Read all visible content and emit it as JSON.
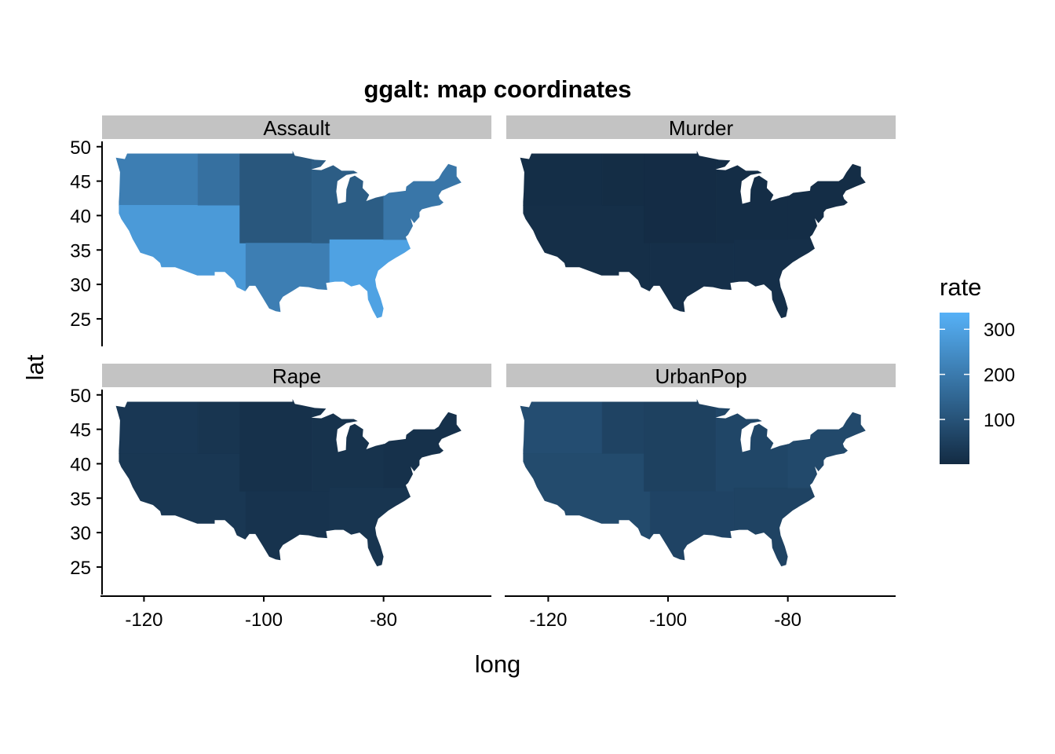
{
  "title": "ggalt: map coordinates",
  "colors": {
    "low": "#132b43",
    "high": "#56b1f7",
    "strip": "#c3c3c3",
    "axis": "#000000"
  },
  "chart_data": {
    "type": "map",
    "title": "ggalt: map coordinates",
    "xlabel": "long",
    "ylabel": "lat",
    "x_ticks": [
      -120,
      -100,
      -80
    ],
    "y_ticks": [
      25,
      30,
      35,
      40,
      45,
      50
    ],
    "x_range": [
      -127,
      -62
    ],
    "y_range": [
      21,
      51
    ],
    "legend": {
      "title": "rate",
      "position": "right",
      "ticks": [
        100,
        200,
        300
      ],
      "range": [
        0.8,
        337
      ]
    },
    "panels": [
      {
        "name": "Assault",
        "values": {
          "West": 210,
          "Mountain": 175,
          "SouthWest": 280,
          "Plains": 110,
          "MidWest": 125,
          "South": 210,
          "SouthEast": 300,
          "NorthEast": 190
        }
      },
      {
        "name": "Murder",
        "values": {
          "West": 8,
          "Mountain": 5,
          "SouthWest": 10,
          "Plains": 4,
          "MidWest": 6,
          "South": 12,
          "SouthEast": 12,
          "NorthEast": 6
        }
      },
      {
        "name": "Rape",
        "values": {
          "West": 32,
          "Mountain": 25,
          "SouthWest": 30,
          "Plains": 16,
          "MidWest": 20,
          "South": 22,
          "SouthEast": 25,
          "NorthEast": 16
        }
      },
      {
        "name": "UrbanPop",
        "values": {
          "West": 86,
          "Mountain": 60,
          "SouthWest": 80,
          "Plains": 55,
          "MidWest": 68,
          "South": 62,
          "SouthEast": 60,
          "NorthEast": 75
        }
      }
    ]
  }
}
